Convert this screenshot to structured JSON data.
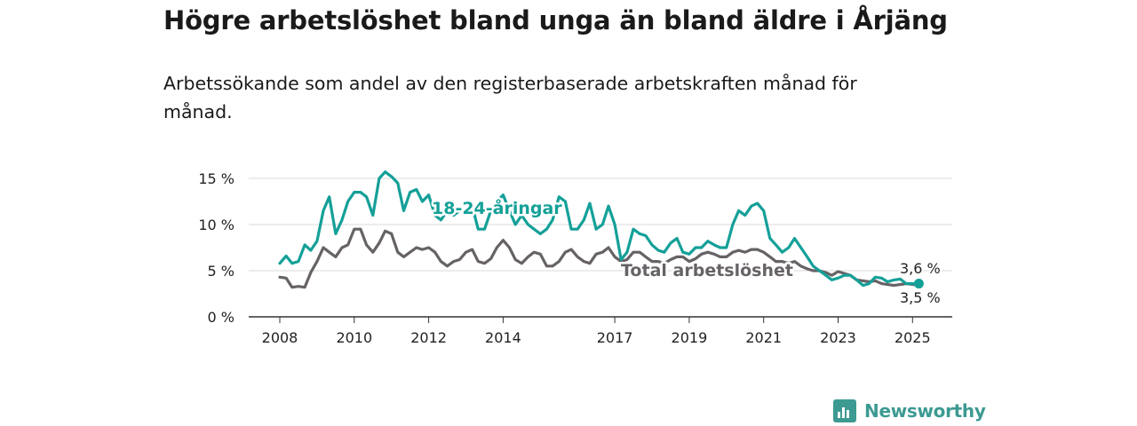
{
  "title": "Högre arbetslöshet bland unga än bland äldre i Årjäng",
  "subtitle": "Arbetssökande som andel av den registerbaserade arbetskraften månad för månad.",
  "brand": {
    "name": "Newsworthy",
    "icon": "newsworthy-logo-icon",
    "color": "#3c9a92"
  },
  "chart_data": {
    "type": "line",
    "title": "Högre arbetslöshet bland unga än bland äldre i Årjäng",
    "subtitle": "Arbetssökande som andel av den registerbaserade arbetskraften månad för månad.",
    "xlabel": "",
    "ylabel": "",
    "xlim": [
      2008,
      2025.75
    ],
    "ylim": [
      0,
      15
    ],
    "x_ticks": [
      2008,
      2010,
      2012,
      2014,
      2017,
      2019,
      2021,
      2023,
      2025
    ],
    "x_tick_labels": [
      "2008",
      "2010",
      "2012",
      "2014",
      "2017",
      "2019",
      "2021",
      "2023",
      "2025"
    ],
    "y_ticks": [
      0,
      5,
      10,
      15
    ],
    "y_tick_labels": [
      "0 %",
      "5 %",
      "10 %",
      "15 %"
    ],
    "grid": true,
    "series": [
      {
        "name": "18-24-åringar",
        "color": "#14a098",
        "end_label": "3,6 %",
        "x": [
          2008.0,
          2008.17,
          2008.33,
          2008.5,
          2008.67,
          2008.83,
          2009.0,
          2009.17,
          2009.33,
          2009.5,
          2009.67,
          2009.83,
          2010.0,
          2010.17,
          2010.33,
          2010.5,
          2010.67,
          2010.83,
          2011.0,
          2011.17,
          2011.33,
          2011.5,
          2011.67,
          2011.83,
          2012.0,
          2012.17,
          2012.33,
          2012.5,
          2012.67,
          2012.83,
          2013.0,
          2013.17,
          2013.33,
          2013.5,
          2013.67,
          2013.83,
          2014.0,
          2014.17,
          2014.33,
          2014.5,
          2014.67,
          2014.83,
          2015.0,
          2015.17,
          2015.33,
          2015.5,
          2015.67,
          2015.83,
          2016.0,
          2016.17,
          2016.33,
          2016.5,
          2016.67,
          2016.83,
          2017.0,
          2017.17,
          2017.33,
          2017.5,
          2017.67,
          2017.83,
          2018.0,
          2018.17,
          2018.33,
          2018.5,
          2018.67,
          2018.83,
          2019.0,
          2019.17,
          2019.33,
          2019.5,
          2019.67,
          2019.83,
          2020.0,
          2020.17,
          2020.33,
          2020.5,
          2020.67,
          2020.83,
          2021.0,
          2021.17,
          2021.33,
          2021.5,
          2021.67,
          2021.83,
          2022.0,
          2022.17,
          2022.33,
          2022.5,
          2022.67,
          2022.83,
          2023.0,
          2023.17,
          2023.33,
          2023.5,
          2023.67,
          2023.83,
          2024.0,
          2024.17,
          2024.33,
          2024.5,
          2024.67,
          2024.83,
          2025.0,
          2025.17
        ],
        "values": [
          5.8,
          6.6,
          5.8,
          6.0,
          7.8,
          7.2,
          8.2,
          11.5,
          13.0,
          9.0,
          10.5,
          12.5,
          13.5,
          13.5,
          13.0,
          11.0,
          15.0,
          15.7,
          15.2,
          14.5,
          11.5,
          13.5,
          13.8,
          12.5,
          13.2,
          11.0,
          10.5,
          11.5,
          11.0,
          11.5,
          11.5,
          12.0,
          9.5,
          9.5,
          11.5,
          12.5,
          13.2,
          11.5,
          10.0,
          11.0,
          10.0,
          9.5,
          9.0,
          9.5,
          10.5,
          13.0,
          12.5,
          9.5,
          9.5,
          10.5,
          12.3,
          9.5,
          10.0,
          12.0,
          10.0,
          6.2,
          7.0,
          9.5,
          9.0,
          8.8,
          7.8,
          7.2,
          7.0,
          8.0,
          8.5,
          7.0,
          6.8,
          7.5,
          7.5,
          8.2,
          7.8,
          7.5,
          7.5,
          10.0,
          11.5,
          11.0,
          12.0,
          12.3,
          11.5,
          8.5,
          7.8,
          7.0,
          7.5,
          8.5,
          7.5,
          6.5,
          5.5,
          5.0,
          4.5,
          4.0,
          4.2,
          4.5,
          4.5,
          4.0,
          3.4,
          3.6,
          4.3,
          4.2,
          3.8,
          4.0,
          4.1,
          3.6,
          3.6,
          3.6
        ]
      },
      {
        "name": "Total arbetslöshet",
        "color": "#666266",
        "end_label": "3,5 %",
        "x": [
          2008.0,
          2008.17,
          2008.33,
          2008.5,
          2008.67,
          2008.83,
          2009.0,
          2009.17,
          2009.33,
          2009.5,
          2009.67,
          2009.83,
          2010.0,
          2010.17,
          2010.33,
          2010.5,
          2010.67,
          2010.83,
          2011.0,
          2011.17,
          2011.33,
          2011.5,
          2011.67,
          2011.83,
          2012.0,
          2012.17,
          2012.33,
          2012.5,
          2012.67,
          2012.83,
          2013.0,
          2013.17,
          2013.33,
          2013.5,
          2013.67,
          2013.83,
          2014.0,
          2014.17,
          2014.33,
          2014.5,
          2014.67,
          2014.83,
          2015.0,
          2015.17,
          2015.33,
          2015.5,
          2015.67,
          2015.83,
          2016.0,
          2016.17,
          2016.33,
          2016.5,
          2016.67,
          2016.83,
          2017.0,
          2017.17,
          2017.33,
          2017.5,
          2017.67,
          2017.83,
          2018.0,
          2018.17,
          2018.33,
          2018.5,
          2018.67,
          2018.83,
          2019.0,
          2019.17,
          2019.33,
          2019.5,
          2019.67,
          2019.83,
          2020.0,
          2020.17,
          2020.33,
          2020.5,
          2020.67,
          2020.83,
          2021.0,
          2021.17,
          2021.33,
          2021.5,
          2021.67,
          2021.83,
          2022.0,
          2022.17,
          2022.33,
          2022.5,
          2022.67,
          2022.83,
          2023.0,
          2023.17,
          2023.33,
          2023.5,
          2023.67,
          2023.83,
          2024.0,
          2024.17,
          2024.33,
          2024.5,
          2024.67,
          2024.83,
          2025.0,
          2025.17
        ],
        "values": [
          4.3,
          4.2,
          3.2,
          3.3,
          3.2,
          4.8,
          6.0,
          7.5,
          7.0,
          6.5,
          7.5,
          7.8,
          9.5,
          9.5,
          7.8,
          7.0,
          8.0,
          9.3,
          9.0,
          7.0,
          6.5,
          7.0,
          7.5,
          7.3,
          7.5,
          7.0,
          6.0,
          5.5,
          6.0,
          6.2,
          7.0,
          7.3,
          6.0,
          5.8,
          6.3,
          7.5,
          8.3,
          7.5,
          6.2,
          5.8,
          6.5,
          7.0,
          6.8,
          5.5,
          5.5,
          6.0,
          7.0,
          7.3,
          6.5,
          6.0,
          5.8,
          6.8,
          7.0,
          7.5,
          6.5,
          6.0,
          6.2,
          7.0,
          7.0,
          6.5,
          6.0,
          6.0,
          5.8,
          6.2,
          6.5,
          6.5,
          6.0,
          6.3,
          6.8,
          7.0,
          6.8,
          6.5,
          6.5,
          7.0,
          7.2,
          7.0,
          7.3,
          7.3,
          7.0,
          6.5,
          6.0,
          6.0,
          5.8,
          6.0,
          5.5,
          5.2,
          5.0,
          5.0,
          4.8,
          4.5,
          4.9,
          4.7,
          4.5,
          4.0,
          3.9,
          3.8,
          3.9,
          3.6,
          3.5,
          3.4,
          3.5,
          3.6,
          3.5,
          3.5
        ]
      }
    ],
    "legend": "inline-labels"
  }
}
